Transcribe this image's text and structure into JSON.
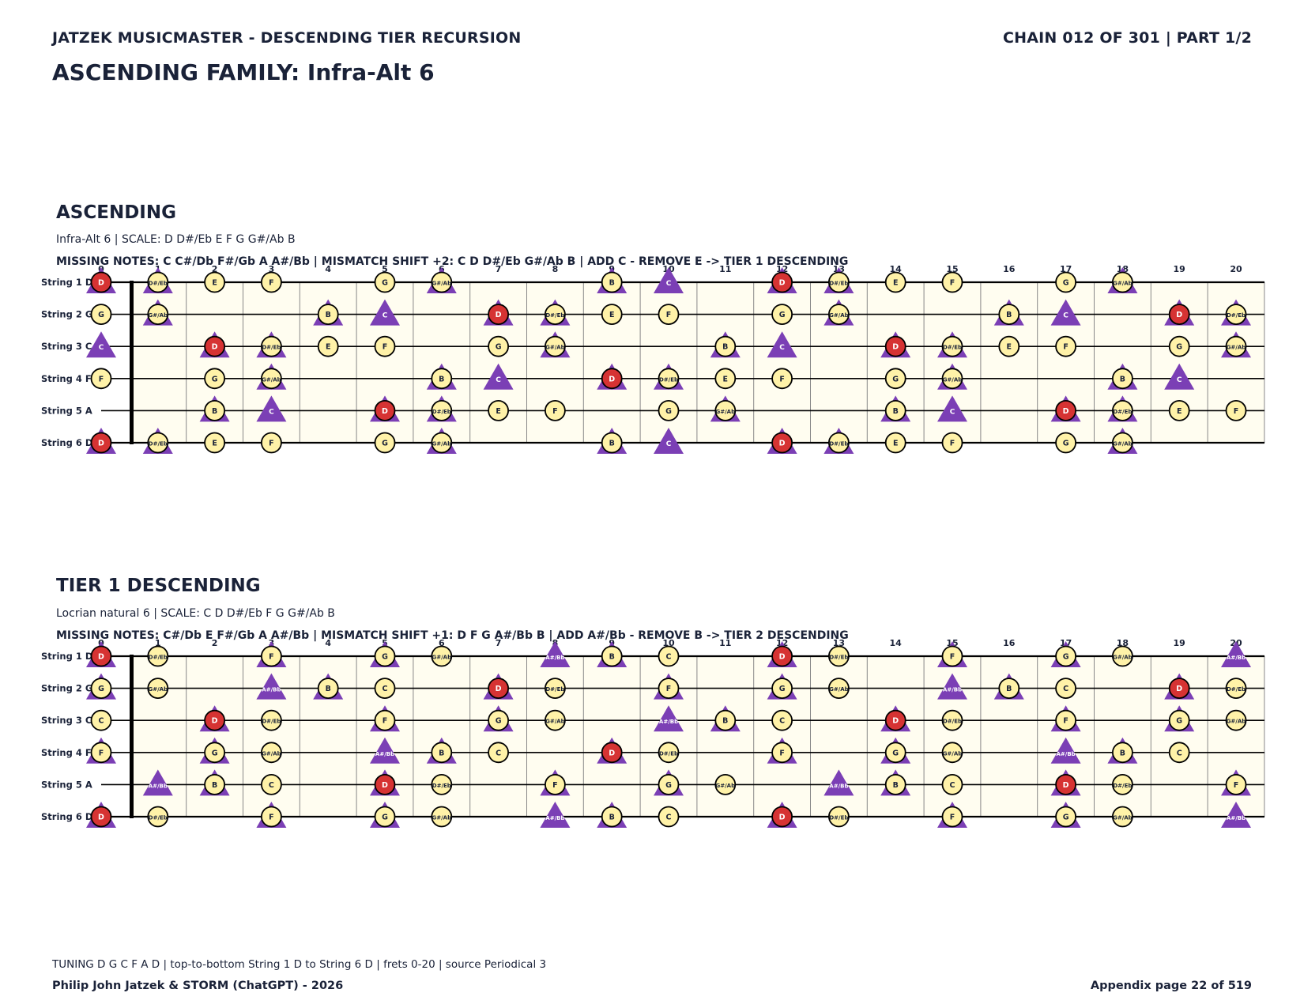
{
  "header": {
    "left": "JATZEK MUSICMASTER - DESCENDING TIER RECURSION",
    "right": "CHAIN 012 OF 301  |  PART 1/2",
    "title": "ASCENDING FAMILY: Infra-Alt 6"
  },
  "colors": {
    "root": "#d63333",
    "note": "#fff2a8",
    "added": "#7b3fb5",
    "board": "#fffdf0",
    "ink": "#1a2238"
  },
  "fret_numbers": [
    "0",
    "1",
    "2",
    "3",
    "4",
    "5",
    "6",
    "7",
    "8",
    "9",
    "10",
    "11",
    "12",
    "13",
    "14",
    "15",
    "16",
    "17",
    "18",
    "19",
    "20"
  ],
  "string_labels": [
    "String 1 D",
    "String 2 G",
    "String 3 C",
    "String 4 F",
    "String 5 A",
    "String 6 D"
  ],
  "sections": [
    {
      "title": "ASCENDING",
      "subtitle": "Infra-Alt 6  |  SCALE: D D#/Eb E F G G#/Ab B",
      "missing": "MISSING NOTES: C C#/Db F#/Gb A A#/Bb  |  MISMATCH SHIFT +2: C D D#/Eb G#/Ab B  |  ADD C - REMOVE E -> TIER 1 DESCENDING",
      "root": "D",
      "scale": [
        "D",
        "D#/Eb",
        "E",
        "F",
        "G",
        "G#/Ab",
        "B"
      ],
      "removed": "E",
      "added": "C",
      "strings": [
        [
          {
            "f": 0,
            "n": "D",
            "t": [
              "D"
            ]
          },
          {
            "f": 1,
            "n": "D#/Eb",
            "t": [
              "D#/Eb"
            ]
          },
          {
            "f": 2,
            "n": "E"
          },
          {
            "f": 3,
            "n": "F"
          },
          {
            "f": 5,
            "n": "G"
          },
          {
            "f": 6,
            "n": "G#/Ab",
            "t": [
              "G#/Ab"
            ]
          },
          {
            "f": 9,
            "n": "B",
            "t": [
              "B"
            ]
          },
          {
            "t": [
              "C"
            ],
            "f": 10
          },
          {
            "f": 12,
            "n": "D",
            "t": [
              "D"
            ]
          },
          {
            "f": 13,
            "n": "D#/Eb",
            "t": [
              "D#/Eb"
            ]
          },
          {
            "f": 14,
            "n": "E"
          },
          {
            "f": 15,
            "n": "F"
          },
          {
            "f": 17,
            "n": "G"
          },
          {
            "f": 18,
            "n": "G#/Ab",
            "t": [
              "G#/Ab"
            ]
          }
        ],
        [
          {
            "f": 0,
            "n": "G"
          },
          {
            "f": 1,
            "n": "G#/Ab",
            "t": [
              "G#/Ab"
            ]
          },
          {
            "f": 4,
            "n": "B",
            "t": [
              "B"
            ]
          },
          {
            "t": [
              "C"
            ],
            "f": 5
          },
          {
            "f": 7,
            "n": "D",
            "t": [
              "D"
            ]
          },
          {
            "f": 8,
            "n": "D#/Eb",
            "t": [
              "D#/Eb"
            ]
          },
          {
            "f": 9,
            "n": "E"
          },
          {
            "f": 10,
            "n": "F"
          },
          {
            "f": 12,
            "n": "G"
          },
          {
            "f": 13,
            "n": "G#/Ab",
            "t": [
              "G#/Ab"
            ]
          },
          {
            "f": 16,
            "n": "B",
            "t": [
              "B"
            ]
          },
          {
            "t": [
              "C"
            ],
            "f": 17
          },
          {
            "f": 19,
            "n": "D",
            "t": [
              "D"
            ]
          },
          {
            "f": 20,
            "n": "D#/Eb",
            "t": [
              "D#/Eb"
            ]
          }
        ],
        [
          {
            "t": [
              "C"
            ],
            "f": 0
          },
          {
            "f": 2,
            "n": "D",
            "t": [
              "D"
            ]
          },
          {
            "f": 3,
            "n": "D#/Eb",
            "t": [
              "D#/Eb"
            ]
          },
          {
            "f": 4,
            "n": "E"
          },
          {
            "f": 5,
            "n": "F"
          },
          {
            "f": 7,
            "n": "G"
          },
          {
            "f": 8,
            "n": "G#/Ab",
            "t": [
              "G#/Ab"
            ]
          },
          {
            "f": 11,
            "n": "B",
            "t": [
              "B"
            ]
          },
          {
            "t": [
              "C"
            ],
            "f": 12
          },
          {
            "f": 14,
            "n": "D",
            "t": [
              "D"
            ]
          },
          {
            "f": 15,
            "n": "D#/Eb",
            "t": [
              "D#/Eb"
            ]
          },
          {
            "f": 16,
            "n": "E"
          },
          {
            "f": 17,
            "n": "F"
          },
          {
            "f": 19,
            "n": "G"
          },
          {
            "f": 20,
            "n": "G#/Ab",
            "t": [
              "G#/Ab"
            ]
          }
        ],
        [
          {
            "f": 0,
            "n": "F"
          },
          {
            "f": 2,
            "n": "G"
          },
          {
            "f": 3,
            "n": "G#/Ab",
            "t": [
              "G#/Ab"
            ]
          },
          {
            "f": 6,
            "n": "B",
            "t": [
              "B"
            ]
          },
          {
            "t": [
              "C"
            ],
            "f": 7
          },
          {
            "f": 9,
            "n": "D",
            "t": [
              "D"
            ]
          },
          {
            "f": 10,
            "n": "D#/Eb",
            "t": [
              "D#/Eb"
            ]
          },
          {
            "f": 11,
            "n": "E"
          },
          {
            "f": 12,
            "n": "F"
          },
          {
            "f": 14,
            "n": "G"
          },
          {
            "f": 15,
            "n": "G#/Ab",
            "t": [
              "G#/Ab"
            ]
          },
          {
            "f": 18,
            "n": "B",
            "t": [
              "B"
            ]
          },
          {
            "t": [
              "C"
            ],
            "f": 19
          }
        ],
        [
          {
            "f": 2,
            "n": "B",
            "t": [
              "B"
            ]
          },
          {
            "t": [
              "C"
            ],
            "f": 3
          },
          {
            "f": 5,
            "n": "D",
            "t": [
              "D"
            ]
          },
          {
            "f": 6,
            "n": "D#/Eb",
            "t": [
              "D#/Eb"
            ]
          },
          {
            "f": 7,
            "n": "E"
          },
          {
            "f": 8,
            "n": "F"
          },
          {
            "f": 10,
            "n": "G"
          },
          {
            "f": 11,
            "n": "G#/Ab",
            "t": [
              "G#/Ab"
            ]
          },
          {
            "f": 14,
            "n": "B",
            "t": [
              "B"
            ]
          },
          {
            "t": [
              "C"
            ],
            "f": 15
          },
          {
            "f": 17,
            "n": "D",
            "t": [
              "D"
            ]
          },
          {
            "f": 18,
            "n": "D#/Eb",
            "t": [
              "D#/Eb"
            ]
          },
          {
            "f": 19,
            "n": "E"
          },
          {
            "f": 20,
            "n": "F"
          }
        ],
        [
          {
            "f": 0,
            "n": "D",
            "t": [
              "D"
            ]
          },
          {
            "f": 1,
            "n": "D#/Eb",
            "t": [
              "D#/Eb"
            ]
          },
          {
            "f": 2,
            "n": "E"
          },
          {
            "f": 3,
            "n": "F"
          },
          {
            "f": 5,
            "n": "G"
          },
          {
            "f": 6,
            "n": "G#/Ab",
            "t": [
              "G#/Ab"
            ]
          },
          {
            "f": 9,
            "n": "B",
            "t": [
              "B"
            ]
          },
          {
            "t": [
              "C"
            ],
            "f": 10
          },
          {
            "f": 12,
            "n": "D",
            "t": [
              "D"
            ]
          },
          {
            "f": 13,
            "n": "D#/Eb",
            "t": [
              "D#/Eb"
            ]
          },
          {
            "f": 14,
            "n": "E"
          },
          {
            "f": 15,
            "n": "F"
          },
          {
            "f": 17,
            "n": "G"
          },
          {
            "f": 18,
            "n": "G#/Ab",
            "t": [
              "G#/Ab"
            ]
          }
        ]
      ]
    },
    {
      "title": "TIER 1 DESCENDING",
      "subtitle": "Locrian natural 6  |  SCALE: C D D#/Eb F G G#/Ab B",
      "missing": "MISSING NOTES: C#/Db E F#/Gb A A#/Bb  |  MISMATCH SHIFT +1: D F G A#/Bb B  |  ADD A#/Bb - REMOVE B -> TIER 2 DESCENDING",
      "root": "D",
      "strings": [
        [
          {
            "f": 0,
            "n": "D",
            "t": 1
          },
          {
            "f": 1,
            "n": "D#/Eb"
          },
          {
            "f": 3,
            "n": "F",
            "t": 1
          },
          {
            "f": 5,
            "n": "G",
            "t": 1
          },
          {
            "f": 6,
            "n": "G#/Ab"
          },
          {
            "f": 8,
            "t": 1,
            "tl": "A#/Bb"
          },
          {
            "f": 9,
            "n": "B",
            "t": 1
          },
          {
            "f": 10,
            "n": "C"
          },
          {
            "f": 12,
            "n": "D",
            "t": 1
          },
          {
            "f": 13,
            "n": "D#/Eb"
          },
          {
            "f": 15,
            "n": "F",
            "t": 1
          },
          {
            "f": 17,
            "n": "G",
            "t": 1
          },
          {
            "f": 18,
            "n": "G#/Ab"
          },
          {
            "f": 20,
            "t": 1,
            "tl": "A#/Bb"
          }
        ],
        [
          {
            "f": 0,
            "n": "G",
            "t": 1
          },
          {
            "f": 1,
            "n": "G#/Ab"
          },
          {
            "f": 3,
            "t": 1,
            "tl": "A#/Bb"
          },
          {
            "f": 4,
            "n": "B",
            "t": 1
          },
          {
            "f": 5,
            "n": "C"
          },
          {
            "f": 7,
            "n": "D",
            "t": 1
          },
          {
            "f": 8,
            "n": "D#/Eb"
          },
          {
            "f": 10,
            "n": "F",
            "t": 1
          },
          {
            "f": 12,
            "n": "G",
            "t": 1
          },
          {
            "f": 13,
            "n": "G#/Ab"
          },
          {
            "f": 15,
            "t": 1,
            "tl": "A#/Bb"
          },
          {
            "f": 16,
            "n": "B",
            "t": 1
          },
          {
            "f": 17,
            "n": "C"
          },
          {
            "f": 19,
            "n": "D",
            "t": 1
          },
          {
            "f": 20,
            "n": "D#/Eb"
          }
        ],
        [
          {
            "f": 0,
            "n": "C"
          },
          {
            "f": 2,
            "n": "D",
            "t": 1
          },
          {
            "f": 3,
            "n": "D#/Eb"
          },
          {
            "f": 5,
            "n": "F",
            "t": 1
          },
          {
            "f": 7,
            "n": "G",
            "t": 1
          },
          {
            "f": 8,
            "n": "G#/Ab"
          },
          {
            "f": 10,
            "t": 1,
            "tl": "A#/Bb"
          },
          {
            "f": 11,
            "n": "B",
            "t": 1
          },
          {
            "f": 12,
            "n": "C"
          },
          {
            "f": 14,
            "n": "D",
            "t": 1
          },
          {
            "f": 15,
            "n": "D#/Eb"
          },
          {
            "f": 17,
            "n": "F",
            "t": 1
          },
          {
            "f": 19,
            "n": "G",
            "t": 1
          },
          {
            "f": 20,
            "n": "G#/Ab"
          }
        ],
        [
          {
            "f": 0,
            "n": "F",
            "t": 1
          },
          {
            "f": 2,
            "n": "G",
            "t": 1
          },
          {
            "f": 3,
            "n": "G#/Ab"
          },
          {
            "f": 5,
            "t": 1,
            "tl": "A#/Bb"
          },
          {
            "f": 6,
            "n": "B",
            "t": 1
          },
          {
            "f": 7,
            "n": "C"
          },
          {
            "f": 9,
            "n": "D",
            "t": 1
          },
          {
            "f": 10,
            "n": "D#/Eb"
          },
          {
            "f": 12,
            "n": "F",
            "t": 1
          },
          {
            "f": 14,
            "n": "G",
            "t": 1
          },
          {
            "f": 15,
            "n": "G#/Ab"
          },
          {
            "f": 17,
            "t": 1,
            "tl": "A#/Bb"
          },
          {
            "f": 18,
            "n": "B",
            "t": 1
          },
          {
            "f": 19,
            "n": "C"
          }
        ],
        [
          {
            "f": 1,
            "t": 1,
            "tl": "A#/Bb"
          },
          {
            "f": 2,
            "n": "B",
            "t": 1
          },
          {
            "f": 3,
            "n": "C"
          },
          {
            "f": 5,
            "n": "D",
            "t": 1
          },
          {
            "f": 6,
            "n": "D#/Eb"
          },
          {
            "f": 8,
            "n": "F",
            "t": 1
          },
          {
            "f": 10,
            "n": "G",
            "t": 1
          },
          {
            "f": 11,
            "n": "G#/Ab"
          },
          {
            "f": 13,
            "t": 1,
            "tl": "A#/Bb"
          },
          {
            "f": 14,
            "n": "B",
            "t": 1
          },
          {
            "f": 15,
            "n": "C"
          },
          {
            "f": 17,
            "n": "D",
            "t": 1
          },
          {
            "f": 18,
            "n": "D#/Eb"
          },
          {
            "f": 20,
            "n": "F",
            "t": 1
          }
        ],
        [
          {
            "f": 0,
            "n": "D",
            "t": 1
          },
          {
            "f": 1,
            "n": "D#/Eb"
          },
          {
            "f": 3,
            "n": "F",
            "t": 1
          },
          {
            "f": 5,
            "n": "G",
            "t": 1
          },
          {
            "f": 6,
            "n": "G#/Ab"
          },
          {
            "f": 8,
            "t": 1,
            "tl": "A#/Bb"
          },
          {
            "f": 9,
            "n": "B",
            "t": 1
          },
          {
            "f": 10,
            "n": "C"
          },
          {
            "f": 12,
            "n": "D",
            "t": 1
          },
          {
            "f": 13,
            "n": "D#/Eb"
          },
          {
            "f": 15,
            "n": "F",
            "t": 1
          },
          {
            "f": 17,
            "n": "G",
            "t": 1
          },
          {
            "f": 18,
            "n": "G#/Ab"
          },
          {
            "f": 20,
            "t": 1,
            "tl": "A#/Bb"
          }
        ]
      ]
    }
  ],
  "footer": {
    "note": "TUNING D G C F A D | top-to-bottom String 1 D to String 6 D | frets 0-20 | source Periodical 3",
    "left": "Philip John Jatzek & STORM (ChatGPT) - 2026",
    "right": "Appendix page 22 of 519"
  }
}
